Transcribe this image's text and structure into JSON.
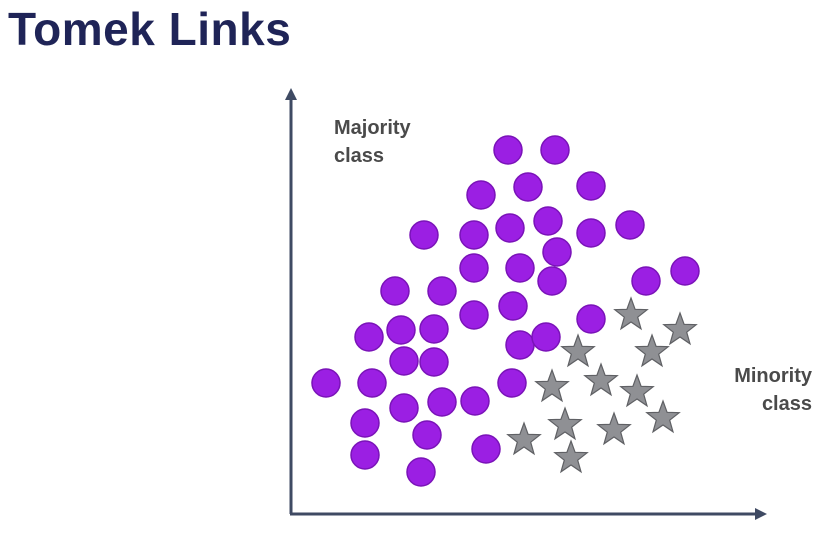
{
  "title": "Tomek Links",
  "labels": {
    "majority_line1": "Majority",
    "majority_line2": "class",
    "minority_line1": "Minority",
    "minority_line2": "class"
  },
  "colors": {
    "majority": "#9b1fe3",
    "minority": "#8f9094",
    "axis": "#3f4a63"
  }
}
